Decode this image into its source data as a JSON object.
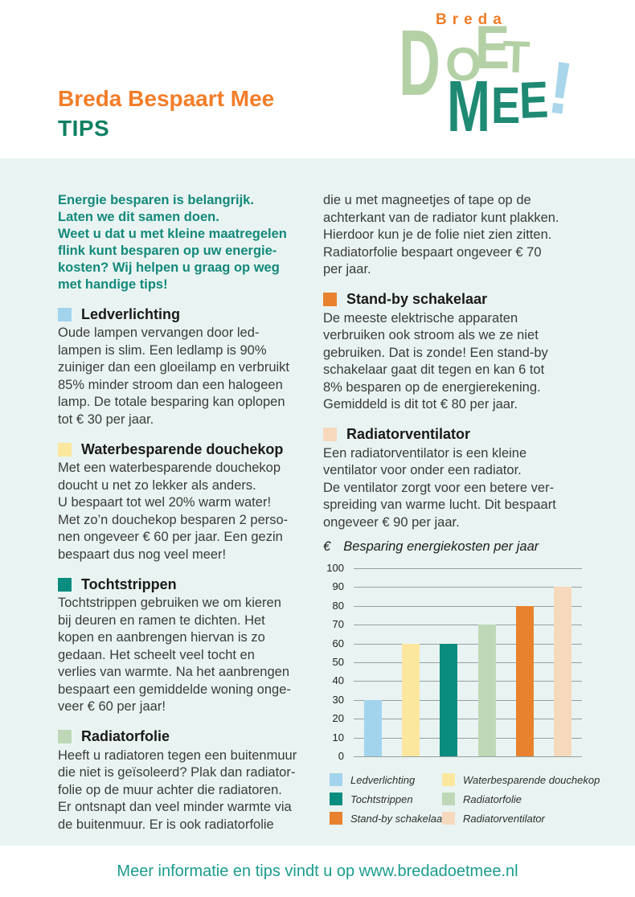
{
  "header": {
    "title_line1": "Breda Bespaart Mee",
    "title_line2": "TIPS"
  },
  "logo": {
    "breda": "Breda",
    "doet": "DOET",
    "mee": "MEE",
    "excl": "!",
    "colors": {
      "orange": "#f07c26",
      "light_green": "#b3d1a5",
      "teal": "#1f8a74",
      "light_blue": "#a9d6ea"
    }
  },
  "intro": "Energie besparen is belangrijk.\nLaten we dit samen doen.\nWeet u dat u met kleine maatregelen\nflink kunt besparen op uw energie-\nkosten? Wij helpen u graag op weg\nmet handige tips!",
  "left_sections": [
    {
      "title": "Ledverlichting",
      "color": "#a3d4ee",
      "body": "Oude lampen vervangen door led-\nlampen is slim. Een ledlamp is 90%\nzuiniger dan een gloeilamp en verbruikt\n85% minder stroom dan een halogeen\nlamp. De totale besparing kan oplopen\ntot € 30 per jaar."
    },
    {
      "title": "Waterbesparende douchekop",
      "color": "#fbe79e",
      "body": "Met een waterbesparende douchekop\ndoucht u net zo lekker als anders.\nU bespaart tot wel 20% warm water!\nMet zo’n douchekop besparen 2 perso-\nnen ongeveer € 60 per jaar. Een gezin\nbespaart dus nog veel meer!"
    },
    {
      "title": "Tochtstrippen",
      "color": "#0a8c7f",
      "body": "Tochtstrippen gebruiken we om kieren\nbij deuren en ramen te dichten. Het\nkopen en aanbrengen hiervan is zo\ngedaan. Het scheelt veel tocht en\nverlies van warmte. Na het aanbrengen\nbespaart een gemiddelde woning onge-\nveer € 60 per jaar!"
    },
    {
      "title": "Radiatorfolie",
      "color": "#bed8b7",
      "body": "Heeft u radiatoren tegen een buitenmuur\ndie niet is geïsoleerd? Plak dan radiator-\nfolie op de muur achter die radiatoren.\nEr ontsnapt dan veel minder warmte via\nde buitenmuur. Er is ook radiatorfolie"
    }
  ],
  "right_column": {
    "continuation": "die u met magneetjes of tape op de\nachterkant van de radiator kunt plakken.\nHierdoor kun je de folie niet zien zitten.\nRadiatorfolie bespaart ongeveer € 70\nper jaar.",
    "sections": [
      {
        "title": "Stand-by schakelaar",
        "color": "#e8822e",
        "body": "De meeste elektrische apparaten\nverbruiken ook stroom als we ze niet\ngebruiken. Dat is zonde! Een stand-by\nschakelaar gaat dit tegen en kan 6 tot\n8% besparen op de energierekening.\nGemiddeld is dit tot € 80 per jaar."
      },
      {
        "title": "Radiatorventilator",
        "color": "#f6d9bd",
        "body": "Een radiatorventilator is een kleine\nventilator voor onder een radiator.\nDe ventilator zorgt voor een betere ver-\nspreiding van warme lucht. Dit bespaart\nongeveer € 90 per jaar."
      }
    ]
  },
  "chart_data": {
    "type": "bar",
    "title": "Besparing energiekosten per jaar",
    "ylabel": "€",
    "categories": [
      "Ledverlichting",
      "Waterbesparende douchekop",
      "Tochtstrippen",
      "Radiatorfolie",
      "Stand-by schakelaar",
      "Radiatorventilator"
    ],
    "values": [
      30,
      60,
      60,
      70,
      80,
      90
    ],
    "colors": [
      "#a3d4ee",
      "#fbe79e",
      "#0a8c7f",
      "#bed8b7",
      "#e8822e",
      "#f6d9bd"
    ],
    "ylim": [
      0,
      100
    ],
    "ytick_step": 10,
    "grid": true,
    "legend_position": "below"
  },
  "legend": {
    "items": [
      {
        "label": "Ledverlichting",
        "color": "#a3d4ee"
      },
      {
        "label": "Waterbesparende douchekop",
        "color": "#fbe79e"
      },
      {
        "label": "Tochtstrippen",
        "color": "#0a8c7f"
      },
      {
        "label": "Radiatorfolie",
        "color": "#bed8b7"
      },
      {
        "label": "Stand-by schakelaar",
        "color": "#e8822e"
      },
      {
        "label": "Radiatorventilator",
        "color": "#f6d9bd"
      }
    ]
  },
  "footer": {
    "text": "Meer informatie en tips vindt u op www.bredadoetmee.nl"
  }
}
